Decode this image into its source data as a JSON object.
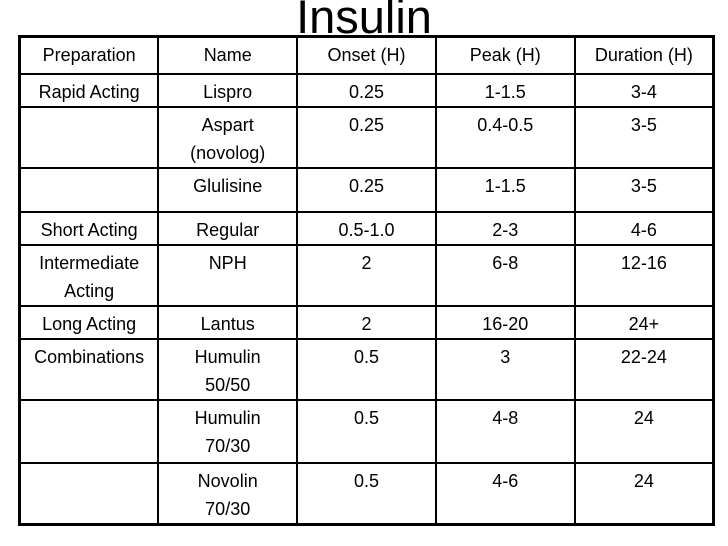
{
  "title": "Insulin",
  "colors": {
    "background": "#ffffff",
    "text": "#000000",
    "border": "#000000"
  },
  "chart_data": {
    "type": "table",
    "title": "Insulin",
    "columns": [
      "Preparation",
      "Name",
      "Onset (H)",
      "Peak (H)",
      "Duration (H)"
    ],
    "rows": [
      [
        "Rapid Acting",
        "Lispro",
        "0.25",
        "1-1.5",
        "3-4"
      ],
      [
        "",
        "Aspart (novolog)",
        "0.25",
        "0.4-0.5",
        "3-5"
      ],
      [
        "",
        "Glulisine",
        "0.25",
        "1-1.5",
        "3-5"
      ],
      [
        "Short Acting",
        "Regular",
        "0.5-1.0",
        "2-3",
        "4-6"
      ],
      [
        "Intermediate Acting",
        "NPH",
        "2",
        "6-8",
        "12-16"
      ],
      [
        "Long Acting",
        "Lantus",
        "2",
        "16-20",
        "24+"
      ],
      [
        "Combinations",
        "Humulin 50/50",
        "0.5",
        "3",
        "22-24"
      ],
      [
        "",
        "Humulin 70/30",
        "0.5",
        "4-8",
        "24"
      ],
      [
        "",
        "Novolin 70/30",
        "0.5",
        "4-6",
        "24"
      ]
    ]
  },
  "table": {
    "header": [
      "Preparation",
      "Name",
      "Onset (H)",
      "Peak (H)",
      "Duration (H)"
    ],
    "rows": [
      {
        "prep": "Rapid Acting",
        "name": "Lispro",
        "onset": "0.25",
        "peak": "1-1.5",
        "dur": "3-4"
      },
      {
        "prep": "",
        "name": "Aspart\n(novolog)",
        "onset": "0.25",
        "peak": "0.4-0.5",
        "dur": "3-5"
      },
      {
        "prep": "",
        "name": "Glulisine",
        "onset": "0.25",
        "peak": "1-1.5",
        "dur": "3-5"
      },
      {
        "prep": "Short Acting",
        "name": "Regular",
        "onset": "0.5-1.0",
        "peak": "2-3",
        "dur": "4-6"
      },
      {
        "prep": "Intermediate\nActing",
        "name": "NPH",
        "onset": "2",
        "peak": "6-8",
        "dur": "12-16"
      },
      {
        "prep": "Long Acting",
        "name": "Lantus",
        "onset": "2",
        "peak": "16-20",
        "dur": "24+"
      },
      {
        "prep": "Combinations",
        "name": "Humulin\n50/50",
        "onset": "0.5",
        "peak": "3",
        "dur": "22-24"
      },
      {
        "prep": "",
        "name": "Humulin\n70/30",
        "onset": "0.5",
        "peak": "4-8",
        "dur": "24"
      },
      {
        "prep": "",
        "name": "Novolin\n70/30",
        "onset": "0.5",
        "peak": "4-6",
        "dur": "24"
      }
    ]
  }
}
